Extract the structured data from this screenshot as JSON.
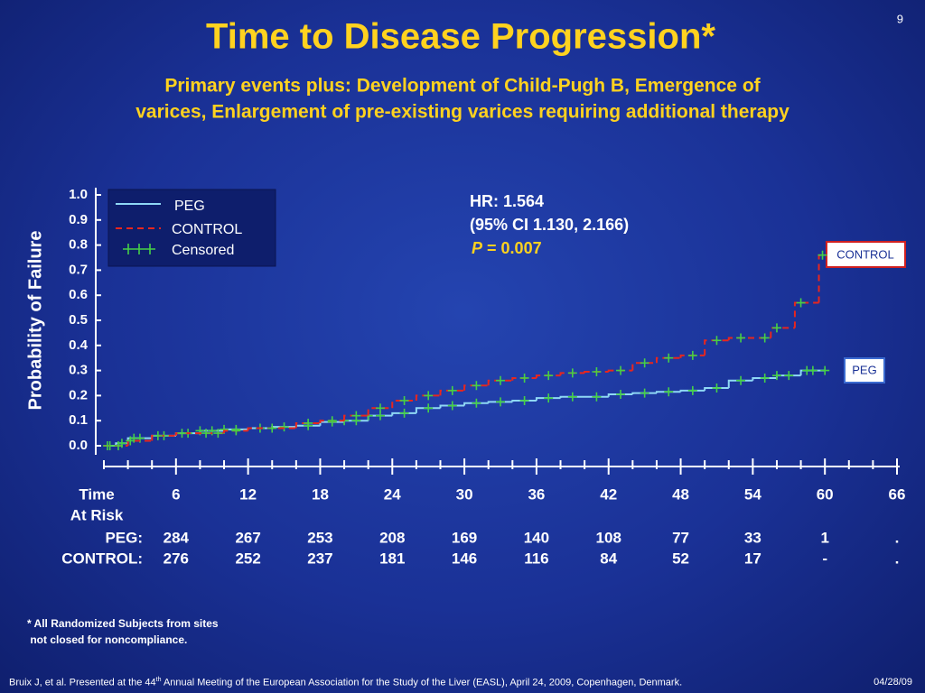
{
  "page_number": "9",
  "chart_data": {
    "type": "step",
    "title": "Time to Disease Progression*",
    "subtitle_lines": [
      "Primary events plus: Development of Child-Pugh B, Emergence of",
      "varices, Enlargement of pre-existing varices requiring additional therapy"
    ],
    "ylabel": "Probability of Failure",
    "xlabel": "Time",
    "xlim": [
      0,
      66
    ],
    "ylim": [
      0,
      1
    ],
    "xticks": [
      6,
      12,
      18,
      24,
      30,
      36,
      42,
      48,
      54,
      60,
      66
    ],
    "xticks_minor": [
      0,
      2,
      4,
      8,
      10,
      14,
      16,
      20,
      22,
      26,
      28,
      32,
      34,
      38,
      40,
      44,
      46,
      50,
      52,
      56,
      58,
      62,
      64
    ],
    "yticks": [
      {
        "value": 0,
        "label": "0.0"
      },
      0.1,
      0.2,
      0.3,
      0.4,
      0.5,
      0.6,
      0.7,
      0.8,
      0.9,
      {
        "value": 1,
        "label": "1.0"
      }
    ],
    "series": [
      {
        "name": "PEG",
        "color": "#8fd8f5",
        "dashed": false,
        "x": [
          0,
          1,
          2,
          4,
          6,
          8,
          10,
          12,
          14,
          16,
          18,
          20,
          22,
          24,
          26,
          28,
          30,
          32,
          34,
          36,
          38,
          42,
          44,
          46,
          48,
          50,
          52,
          54,
          56,
          58
        ],
        "values": [
          0,
          0.01,
          0.03,
          0.04,
          0.05,
          0.06,
          0.065,
          0.07,
          0.075,
          0.08,
          0.095,
          0.1,
          0.12,
          0.13,
          0.15,
          0.16,
          0.17,
          0.175,
          0.18,
          0.19,
          0.195,
          0.205,
          0.21,
          0.215,
          0.22,
          0.23,
          0.26,
          0.27,
          0.28,
          0.3
        ],
        "censored": [
          0.5,
          1.5,
          2.5,
          3,
          5,
          7,
          8,
          9,
          10,
          11,
          13,
          15,
          17,
          19,
          20,
          21,
          22,
          23,
          25,
          27,
          29,
          31,
          33,
          35,
          37,
          39,
          41,
          43,
          45,
          47,
          49,
          51,
          53,
          55,
          56,
          57,
          58.5,
          59,
          60
        ]
      },
      {
        "name": "CONTROL",
        "color": "#e8261e",
        "dashed": true,
        "x": [
          0,
          2,
          4,
          6,
          10,
          12,
          16,
          18,
          20,
          22,
          24,
          26,
          28,
          30,
          32,
          34,
          36,
          38,
          40,
          42,
          44,
          46,
          48,
          50,
          52,
          55.5,
          57.5,
          59.5
        ],
        "values": [
          0,
          0.02,
          0.04,
          0.05,
          0.06,
          0.07,
          0.09,
          0.1,
          0.12,
          0.15,
          0.18,
          0.2,
          0.22,
          0.24,
          0.26,
          0.27,
          0.28,
          0.29,
          0.295,
          0.3,
          0.33,
          0.35,
          0.36,
          0.42,
          0.43,
          0.47,
          0.57,
          0.76
        ],
        "censored": [
          0.3,
          1.2,
          2.2,
          4.5,
          6.5,
          8.5,
          9.5,
          11,
          14,
          17,
          19,
          21,
          23,
          25,
          27,
          29,
          31,
          33,
          35,
          37,
          39,
          41,
          43,
          45,
          47,
          49,
          51,
          53,
          55,
          56,
          58,
          59.8
        ]
      }
    ],
    "censored_label": "Censored",
    "censored_color": "#46d046",
    "annotations": [
      "HR: 1.564",
      "(95% CI 1.130, 2.166)"
    ],
    "p_value": {
      "symbol": "P",
      "text": "= 0.007"
    },
    "risk_table": {
      "title": "At Risk",
      "rows": [
        {
          "label": "PEG:",
          "values": [
            "284",
            "267",
            "253",
            "208",
            "169",
            "140",
            "108",
            "77",
            "33",
            "1",
            "."
          ]
        },
        {
          "label": "CONTROL:",
          "values": [
            "276",
            "252",
            "237",
            "181",
            "146",
            "116",
            "84",
            "52",
            "17",
            "-",
            "."
          ]
        }
      ]
    }
  },
  "footnote_lines": [
    "* All Randomized Subjects from sites",
    " not closed for noncompliance."
  ],
  "citation": {
    "before": "Bruix J, et al. Presented at the 44",
    "sup": "th",
    "after": " Annual Meeting of the European Association for the Study of the Liver (EASL), April 24, 2009, Copenhagen, Denmark."
  },
  "date": "04/28/09"
}
